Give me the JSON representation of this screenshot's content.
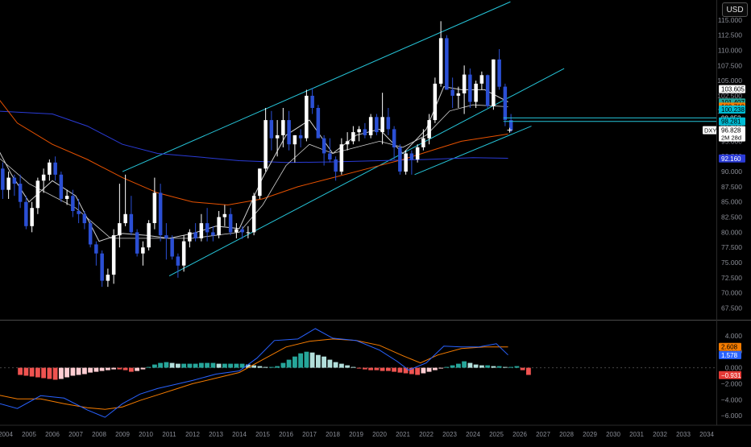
{
  "currency_button": "USD",
  "price_axis": {
    "ticks": [
      "115.000",
      "112.500",
      "110.000",
      "107.500",
      "105.000",
      "102.500",
      "100.000",
      "97.500",
      "95.000",
      "92.500",
      "90.000",
      "87.500",
      "85.000",
      "82.500",
      "80.000",
      "77.500",
      "75.000",
      "72.500",
      "70.000",
      "67.500"
    ],
    "min": 66.5,
    "max": 117.5
  },
  "price_labels": [
    {
      "value": 103.605,
      "text": "103.605",
      "bg": "#ffffff",
      "fg": "#000000"
    },
    {
      "value": 101.407,
      "text": "101.407",
      "bg": "#26a69a",
      "fg": "#000000"
    },
    {
      "value": 100.718,
      "text": "100.718",
      "bg": "#f57c00",
      "fg": "#000000"
    },
    {
      "value": 100.238,
      "text": "100.238",
      "bg": "#00bcd4",
      "fg": "#000000"
    },
    {
      "value": 98.852,
      "text": "98.852",
      "bg": "#000000",
      "fg": "#e0e0e0"
    },
    {
      "value": 98.281,
      "text": "98.281",
      "bg": "#00bcd4",
      "fg": "#000000"
    },
    {
      "value": 96.157,
      "text": "96.157",
      "bg": "#e53935",
      "fg": "#ffffff"
    },
    {
      "value": 92.16,
      "text": "92.160",
      "bg": "#2b3bd6",
      "fg": "#ffffff"
    }
  ],
  "current_price": {
    "symbol": "DXY",
    "value": 96.828,
    "text": "96.828",
    "countdown": "2M 28d"
  },
  "macd_axis": {
    "ticks": [
      "4.000",
      "2.000",
      "0.000",
      "−2.000",
      "−4.000",
      "−6.000"
    ],
    "min": -7.2,
    "max": 5.5
  },
  "macd_labels": [
    {
      "value": 2.608,
      "text": "2.608",
      "bg": "#f57c00",
      "fg": "#000000"
    },
    {
      "value": 1.578,
      "text": "1.578",
      "bg": "#2962ff",
      "fg": "#ffffff"
    },
    {
      "value": -0.931,
      "text": "−0.931",
      "bg": "#e53935",
      "fg": "#ffffff"
    }
  ],
  "time_axis": {
    "labels": [
      "2004",
      "2005",
      "2006",
      "2007",
      "2008",
      "2009",
      "2010",
      "2011",
      "2012",
      "2013",
      "2014",
      "2015",
      "2016",
      "2017",
      "2018",
      "2019",
      "2020",
      "2021",
      "2022",
      "2023",
      "2024",
      "2025",
      "2026",
      "2027",
      "2028",
      "2029",
      "2030",
      "2031",
      "2032",
      "2033",
      "2034"
    ],
    "first_year": 2004,
    "last_year": 2034
  },
  "colors": {
    "up": "#ffffff",
    "down": "#2b4fd4",
    "channel": "#26c6da",
    "ema_white": "#cfcfcf",
    "ema_orange": "#e65100",
    "ema_blue": "#2a3bd6",
    "macd": "#2962ff",
    "signal": "#f57c00",
    "hist_pos_strong": "#26a69a",
    "hist_pos_weak": "#b2dfdb",
    "hist_neg_strong": "#ef5350",
    "hist_neg_weak": "#ffcdd2"
  },
  "chart_data": {
    "type": "candlestick",
    "symbol": "DXY",
    "interval": "quarterly",
    "title": "",
    "ohlc": [
      [
        2003.5,
        94.0,
        96.0,
        89.5,
        90.5
      ],
      [
        2003.75,
        90.5,
        91.5,
        85.5,
        87.0
      ],
      [
        2004.0,
        87.0,
        90.0,
        85.5,
        89.0
      ],
      [
        2004.25,
        89.0,
        89.5,
        86.0,
        88.0
      ],
      [
        2004.5,
        88.0,
        89.5,
        84.0,
        85.0
      ],
      [
        2004.75,
        85.0,
        86.0,
        80.5,
        81.0
      ],
      [
        2005.0,
        81.0,
        85.0,
        80.0,
        84.0
      ],
      [
        2005.25,
        84.0,
        89.0,
        83.0,
        88.5
      ],
      [
        2005.5,
        88.5,
        90.5,
        86.5,
        89.5
      ],
      [
        2005.75,
        89.5,
        92.0,
        88.5,
        91.5
      ],
      [
        2006.0,
        91.5,
        92.5,
        88.5,
        89.5
      ],
      [
        2006.25,
        89.5,
        90.0,
        85.0,
        85.5
      ],
      [
        2006.5,
        85.5,
        87.0,
        84.5,
        86.0
      ],
      [
        2006.75,
        86.0,
        87.0,
        82.5,
        83.5
      ],
      [
        2007.0,
        83.5,
        85.5,
        81.5,
        83.0
      ],
      [
        2007.25,
        83.0,
        83.5,
        80.5,
        81.5
      ],
      [
        2007.5,
        81.5,
        82.0,
        77.5,
        78.0
      ],
      [
        2007.75,
        78.0,
        78.5,
        74.5,
        76.5
      ],
      [
        2008.0,
        76.5,
        77.0,
        71.0,
        72.0
      ],
      [
        2008.25,
        72.0,
        74.0,
        71.0,
        73.0
      ],
      [
        2008.5,
        73.0,
        80.5,
        71.5,
        79.5
      ],
      [
        2008.75,
        79.5,
        88.0,
        77.5,
        81.5
      ],
      [
        2009.0,
        81.5,
        89.5,
        81.0,
        83.0
      ],
      [
        2009.25,
        83.0,
        86.0,
        79.5,
        80.0
      ],
      [
        2009.5,
        80.0,
        80.5,
        76.0,
        76.5
      ],
      [
        2009.75,
        76.5,
        78.5,
        74.5,
        77.5
      ],
      [
        2010.0,
        77.5,
        82.0,
        77.0,
        81.5
      ],
      [
        2010.25,
        81.5,
        89.0,
        80.5,
        86.5
      ],
      [
        2010.5,
        86.5,
        88.0,
        78.5,
        79.5
      ],
      [
        2010.75,
        79.5,
        81.5,
        75.5,
        79.0
      ],
      [
        2011.0,
        79.0,
        79.5,
        75.5,
        76.0
      ],
      [
        2011.25,
        76.0,
        76.5,
        72.5,
        74.5
      ],
      [
        2011.5,
        74.5,
        79.5,
        73.5,
        78.5
      ],
      [
        2011.75,
        78.5,
        80.5,
        77.5,
        80.0
      ],
      [
        2012.0,
        80.0,
        81.5,
        78.5,
        79.0
      ],
      [
        2012.25,
        79.0,
        83.0,
        78.5,
        81.5
      ],
      [
        2012.5,
        81.5,
        84.0,
        78.5,
        80.0
      ],
      [
        2012.75,
        80.0,
        81.0,
        78.5,
        79.5
      ],
      [
        2013.0,
        79.5,
        83.5,
        79.0,
        82.5
      ],
      [
        2013.25,
        82.5,
        84.5,
        81.0,
        83.0
      ],
      [
        2013.5,
        83.0,
        84.0,
        79.5,
        80.0
      ],
      [
        2013.75,
        80.0,
        81.5,
        79.0,
        80.5
      ],
      [
        2014.0,
        80.5,
        81.0,
        78.9,
        80.0
      ],
      [
        2014.25,
        80.0,
        81.0,
        79.0,
        80.0
      ],
      [
        2014.5,
        80.0,
        86.5,
        79.5,
        86.0
      ],
      [
        2014.75,
        86.0,
        90.5,
        85.5,
        90.5
      ],
      [
        2015.0,
        90.5,
        100.5,
        90.0,
        98.5
      ],
      [
        2015.25,
        98.5,
        100.0,
        93.5,
        95.5
      ],
      [
        2015.5,
        95.5,
        98.5,
        92.5,
        96.0
      ],
      [
        2015.75,
        96.0,
        100.5,
        94.0,
        98.5
      ],
      [
        2016.0,
        98.5,
        100.0,
        93.5,
        94.5
      ],
      [
        2016.25,
        94.5,
        96.0,
        91.5,
        96.0
      ],
      [
        2016.5,
        96.0,
        97.0,
        94.0,
        95.5
      ],
      [
        2016.75,
        95.5,
        103.5,
        95.0,
        102.5
      ],
      [
        2017.0,
        102.5,
        103.8,
        99.5,
        100.5
      ],
      [
        2017.25,
        100.5,
        101.0,
        95.5,
        95.5
      ],
      [
        2017.5,
        95.5,
        96.0,
        91.0,
        93.0
      ],
      [
        2017.75,
        93.0,
        95.5,
        91.5,
        92.0
      ],
      [
        2018.0,
        92.0,
        92.5,
        88.5,
        90.0
      ],
      [
        2018.25,
        90.0,
        95.5,
        89.5,
        94.5
      ],
      [
        2018.5,
        94.5,
        96.5,
        93.5,
        95.0
      ],
      [
        2018.75,
        95.0,
        97.5,
        94.5,
        96.5
      ],
      [
        2019.0,
        96.5,
        97.5,
        95.0,
        97.0
      ],
      [
        2019.25,
        97.0,
        98.0,
        95.5,
        96.0
      ],
      [
        2019.5,
        96.0,
        99.5,
        95.5,
        99.0
      ],
      [
        2019.75,
        99.0,
        99.5,
        96.0,
        96.5
      ],
      [
        2020.0,
        96.5,
        103.0,
        94.5,
        99.0
      ],
      [
        2020.25,
        99.0,
        100.5,
        96.0,
        97.0
      ],
      [
        2020.5,
        97.0,
        97.5,
        92.0,
        94.0
      ],
      [
        2020.75,
        94.0,
        94.5,
        89.5,
        90.0
      ],
      [
        2021.0,
        90.0,
        93.5,
        89.5,
        93.0
      ],
      [
        2021.25,
        93.0,
        93.5,
        89.5,
        92.0
      ],
      [
        2021.5,
        92.0,
        94.5,
        91.5,
        94.0
      ],
      [
        2021.75,
        94.0,
        97.0,
        93.5,
        95.5
      ],
      [
        2022.0,
        95.5,
        99.5,
        94.5,
        98.5
      ],
      [
        2022.25,
        98.5,
        105.5,
        98.0,
        104.5
      ],
      [
        2022.5,
        104.5,
        114.8,
        104.0,
        112.0
      ],
      [
        2022.75,
        112.0,
        112.5,
        103.5,
        103.5
      ],
      [
        2023.0,
        103.5,
        105.5,
        100.5,
        102.5
      ],
      [
        2023.25,
        102.5,
        104.0,
        100.5,
        102.9
      ],
      [
        2023.5,
        102.9,
        107.5,
        99.5,
        106.0
      ],
      [
        2023.75,
        106.0,
        107.0,
        100.5,
        101.5
      ],
      [
        2024.0,
        101.5,
        105.0,
        100.5,
        104.5
      ],
      [
        2024.25,
        104.5,
        106.5,
        103.5,
        105.9
      ],
      [
        2024.5,
        105.9,
        106.0,
        100.5,
        100.8
      ],
      [
        2024.75,
        100.8,
        108.5,
        100.2,
        108.5
      ],
      [
        2025.0,
        108.5,
        110.2,
        103.5,
        104.0
      ],
      [
        2025.25,
        104.0,
        104.5,
        97.5,
        98.5
      ],
      [
        2025.5,
        98.5,
        99.5,
        96.5,
        96.8
      ]
    ],
    "ema_fast": [
      [
        2003.5,
        95
      ],
      [
        2004.25,
        89.5
      ],
      [
        2005,
        85
      ],
      [
        2006,
        88.5
      ],
      [
        2007,
        86
      ],
      [
        2008,
        78.5
      ],
      [
        2009,
        79.8
      ],
      [
        2010,
        79.5
      ],
      [
        2011,
        79
      ],
      [
        2012,
        79.8
      ],
      [
        2013,
        81
      ],
      [
        2014,
        80.6
      ],
      [
        2015,
        89
      ],
      [
        2016,
        96
      ],
      [
        2017,
        98.5
      ],
      [
        2018,
        93
      ],
      [
        2019,
        96
      ],
      [
        2020,
        97
      ],
      [
        2021,
        93
      ],
      [
        2022,
        97
      ],
      [
        2022.75,
        104
      ],
      [
        2023.5,
        103.5
      ],
      [
        2024.5,
        103.5
      ],
      [
        2025.5,
        101.5
      ]
    ],
    "ema_mid": [
      [
        2003.5,
        93
      ],
      [
        2005,
        88
      ],
      [
        2007,
        84
      ],
      [
        2008.5,
        79
      ],
      [
        2010,
        79
      ],
      [
        2012,
        79
      ],
      [
        2014,
        80
      ],
      [
        2015,
        84.5
      ],
      [
        2016,
        91
      ],
      [
        2017,
        94.5
      ],
      [
        2018,
        93
      ],
      [
        2019,
        94
      ],
      [
        2020,
        95
      ],
      [
        2021,
        94
      ],
      [
        2022,
        96
      ],
      [
        2023,
        100
      ],
      [
        2024,
        101
      ],
      [
        2025.5,
        100.7
      ]
    ],
    "ema_slow": [
      [
        2003.5,
        103
      ],
      [
        2004.5,
        98
      ],
      [
        2006,
        94.5
      ],
      [
        2007.5,
        92
      ],
      [
        2009,
        89
      ],
      [
        2010.5,
        86.5
      ],
      [
        2012,
        85
      ],
      [
        2013.5,
        84.5
      ],
      [
        2015,
        85.5
      ],
      [
        2016.5,
        87.5
      ],
      [
        2018,
        89
      ],
      [
        2019.5,
        90.5
      ],
      [
        2021,
        92
      ],
      [
        2022.5,
        93.8
      ],
      [
        2023.5,
        95
      ],
      [
        2025.5,
        96.2
      ]
    ],
    "sma_long": [
      [
        2003.5,
        100
      ],
      [
        2006,
        99.5
      ],
      [
        2007.5,
        97.5
      ],
      [
        2009,
        94.5
      ],
      [
        2010.5,
        93
      ],
      [
        2012,
        92.5
      ],
      [
        2014,
        91.8
      ],
      [
        2016,
        91.5
      ],
      [
        2018,
        91.6
      ],
      [
        2020,
        91.8
      ],
      [
        2022,
        92
      ],
      [
        2024,
        92.3
      ],
      [
        2025.5,
        92.2
      ]
    ],
    "channel_upper": [
      [
        2009.0,
        90.0
      ],
      [
        2025.6,
        118.0
      ]
    ],
    "channel_lower": [
      [
        2011.0,
        72.8
      ],
      [
        2027.9,
        107.0
      ]
    ],
    "support_line": [
      [
        2021.5,
        89.5
      ],
      [
        2026.5,
        97.5
      ]
    ],
    "hlines": [
      98.852,
      98.281
    ],
    "macd_line": [
      [
        2003.5,
        -4.3
      ],
      [
        2004.5,
        -5.1
      ],
      [
        2005.5,
        -3.5
      ],
      [
        2006.5,
        -3.8
      ],
      [
        2007.5,
        -5.3
      ],
      [
        2008.25,
        -6.2
      ],
      [
        2009,
        -4.5
      ],
      [
        2009.75,
        -3.3
      ],
      [
        2010.5,
        -2.6
      ],
      [
        2011.25,
        -2.1
      ],
      [
        2012,
        -1.6
      ],
      [
        2013,
        -0.8
      ],
      [
        2014,
        -0.4
      ],
      [
        2014.75,
        1.2
      ],
      [
        2015.5,
        3.4
      ],
      [
        2016.5,
        3.6
      ],
      [
        2017.25,
        4.9
      ],
      [
        2018,
        3.7
      ],
      [
        2019,
        3.4
      ],
      [
        2020,
        2.2
      ],
      [
        2020.75,
        0.8
      ],
      [
        2021.25,
        -0.3
      ],
      [
        2022,
        0.6
      ],
      [
        2022.75,
        2.7
      ],
      [
        2023.5,
        2.6
      ],
      [
        2024.25,
        2.6
      ],
      [
        2025,
        3.0
      ],
      [
        2025.5,
        1.6
      ]
    ],
    "signal_line": [
      [
        2003.5,
        -3.3
      ],
      [
        2004.5,
        -3.9
      ],
      [
        2005.5,
        -3.9
      ],
      [
        2006.5,
        -4.5
      ],
      [
        2007.5,
        -5.0
      ],
      [
        2008.25,
        -5.2
      ],
      [
        2009,
        -4.9
      ],
      [
        2009.75,
        -4.1
      ],
      [
        2010.5,
        -3.4
      ],
      [
        2011.25,
        -2.7
      ],
      [
        2012,
        -2.0
      ],
      [
        2013,
        -1.3
      ],
      [
        2014,
        -0.6
      ],
      [
        2015,
        1.0
      ],
      [
        2016,
        2.6
      ],
      [
        2017,
        3.3
      ],
      [
        2018,
        3.6
      ],
      [
        2019,
        3.4
      ],
      [
        2020,
        2.8
      ],
      [
        2021,
        1.5
      ],
      [
        2021.75,
        0.6
      ],
      [
        2022.5,
        1.6
      ],
      [
        2023.5,
        2.4
      ],
      [
        2024.5,
        2.6
      ],
      [
        2025.5,
        2.6
      ]
    ],
    "macd_hist": [
      -0.9,
      -1.0,
      -1.1,
      -1.2,
      -1.3,
      -1.4,
      -1.5,
      -1.4,
      -1.2,
      -1.0,
      -0.9,
      -0.8,
      -0.6,
      -0.5,
      -0.4,
      -0.3,
      -0.2,
      -0.2,
      -0.3,
      -0.5,
      -0.4,
      -0.2,
      0.1,
      0.4,
      0.6,
      0.7,
      0.6,
      0.5,
      0.5,
      0.5,
      0.5,
      0.6,
      0.6,
      0.6,
      0.5,
      0.5,
      0.5,
      0.5,
      0.5,
      0.4,
      0.3,
      0.2,
      0.1,
      0.1,
      0.2,
      0.6,
      1.0,
      1.4,
      1.8,
      2.0,
      1.9,
      1.6,
      1.4,
      1.0,
      0.7,
      0.5,
      0.3,
      0.1,
      -0.1,
      -0.2,
      -0.3,
      -0.3,
      -0.4,
      -0.4,
      -0.5,
      -0.6,
      -0.7,
      -0.8,
      -0.9,
      -0.7,
      -0.5,
      -0.3,
      -0.1,
      0.1,
      0.3,
      0.5,
      0.8,
      0.6,
      0.4,
      0.3,
      0.3,
      0.2,
      0.2,
      0.1,
      0.1,
      0.2,
      -0.3,
      -0.9
    ],
    "macd_hist_start": 2004.5
  }
}
